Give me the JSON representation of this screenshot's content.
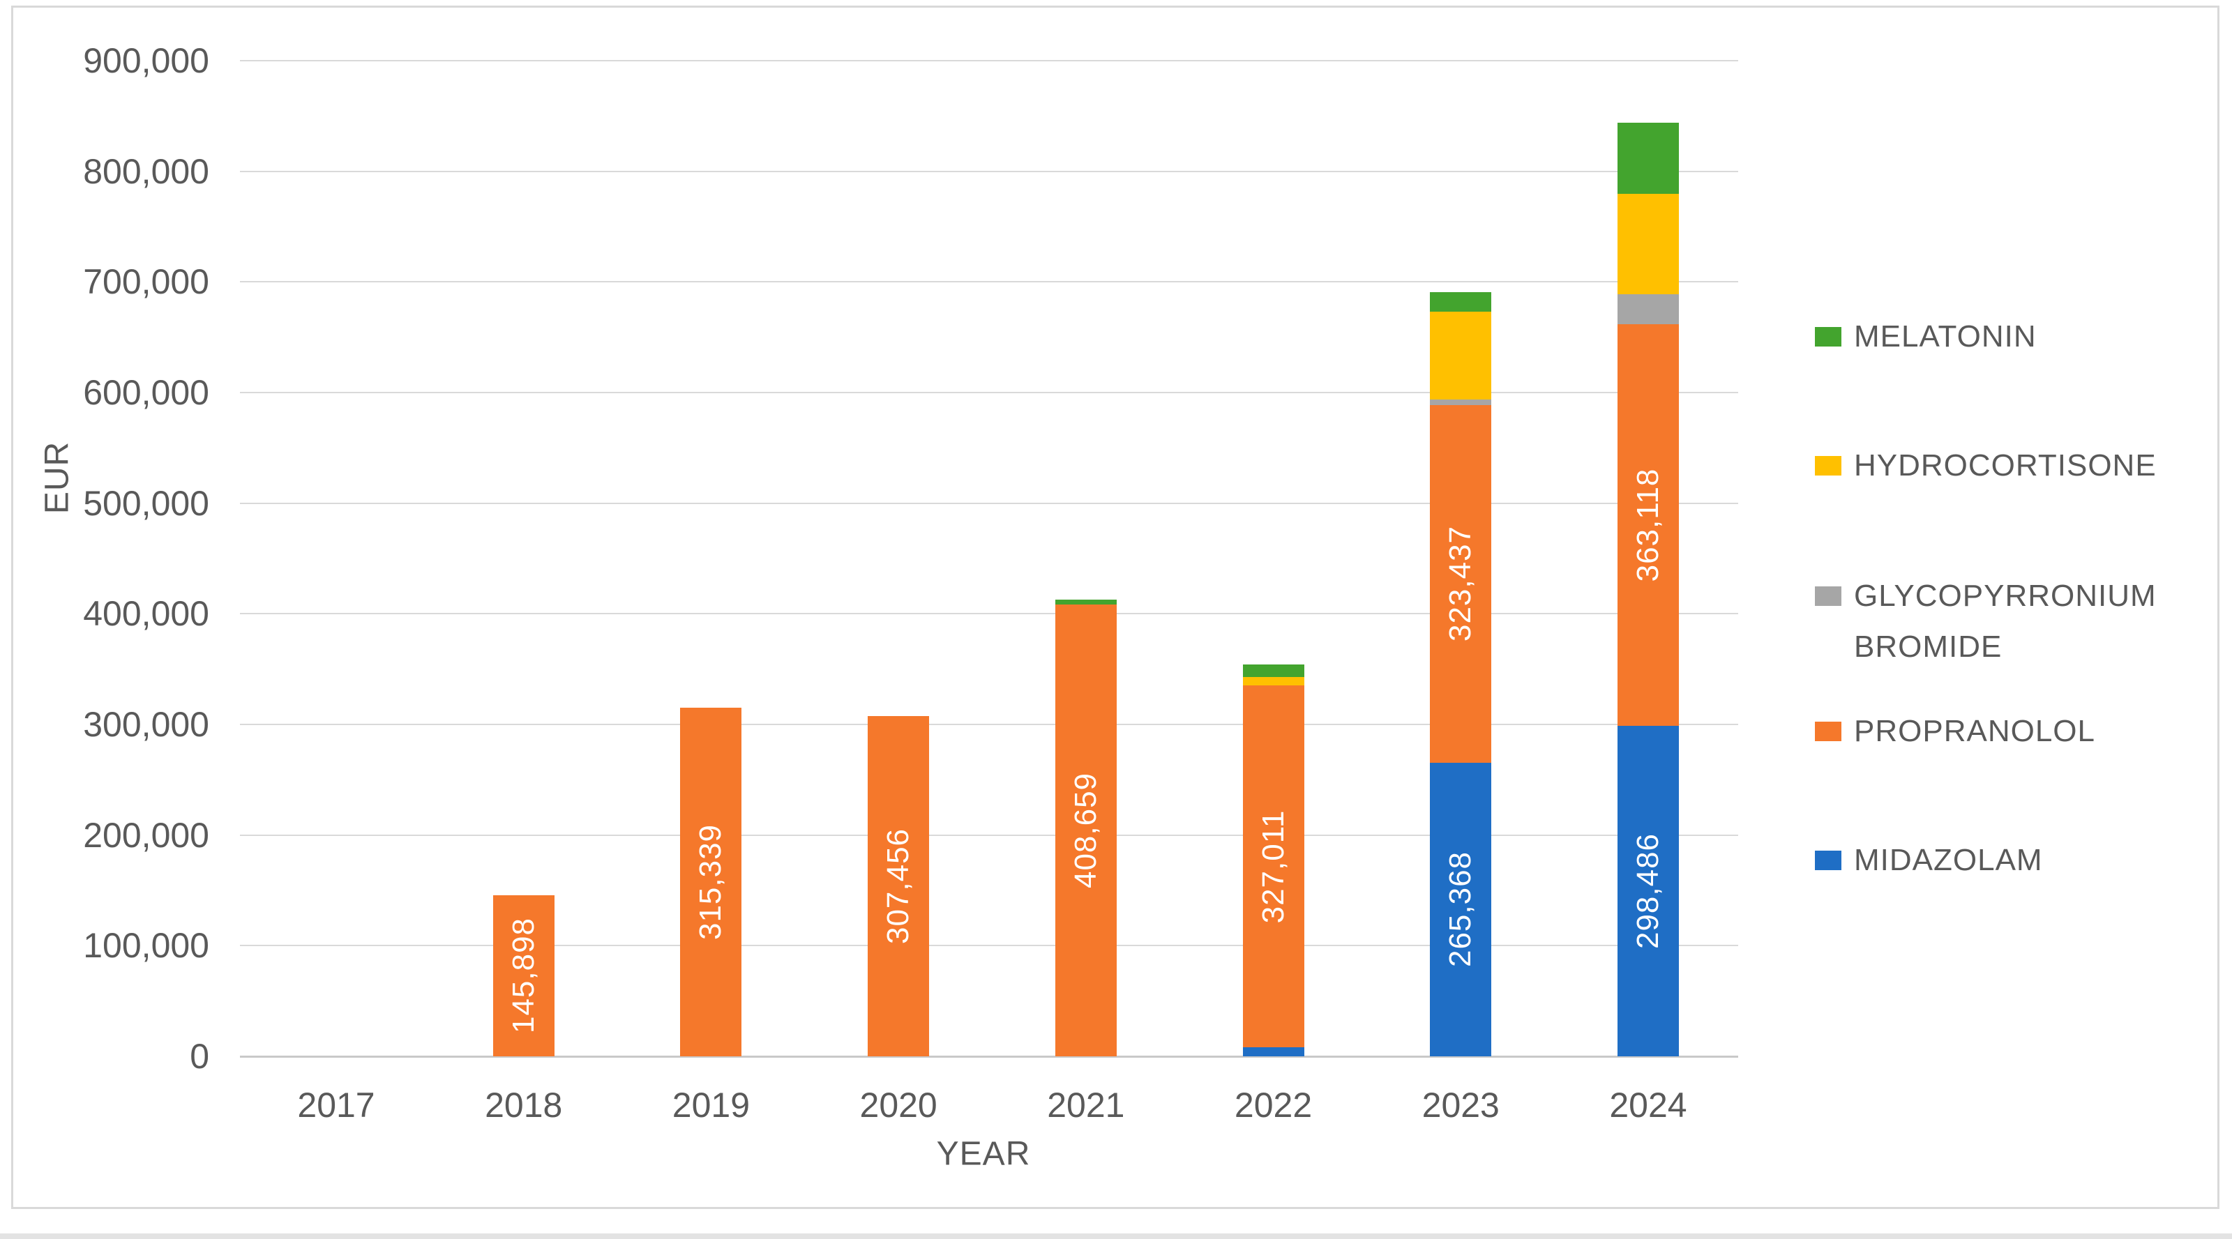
{
  "chart_data": {
    "type": "bar",
    "stacked": true,
    "title": "",
    "xlabel": "YEAR",
    "ylabel": "EUR",
    "ylim": [
      0,
      900000
    ],
    "ytick_step": 100000,
    "grid": true,
    "legend_position": "right",
    "yticks": [
      {
        "value": 0,
        "label": "0"
      },
      {
        "value": 100000,
        "label": "100,000"
      },
      {
        "value": 200000,
        "label": "200,000"
      },
      {
        "value": 300000,
        "label": "300,000"
      },
      {
        "value": 400000,
        "label": "400,000"
      },
      {
        "value": 500000,
        "label": "500,000"
      },
      {
        "value": 600000,
        "label": "600,000"
      },
      {
        "value": 700000,
        "label": "700,000"
      },
      {
        "value": 800000,
        "label": "800,000"
      },
      {
        "value": 900000,
        "label": "900,000"
      }
    ],
    "categories": [
      "2017",
      "2018",
      "2019",
      "2020",
      "2021",
      "2022",
      "2023",
      "2024"
    ],
    "series": [
      {
        "name": "MIDAZOLAM",
        "color": "#1f6ec5",
        "values": [
          0,
          0,
          0,
          0,
          0,
          8000,
          265368,
          298486
        ],
        "data_labels": [
          "",
          "",
          "",
          "",
          "",
          "",
          "265,368",
          "298,486"
        ]
      },
      {
        "name": "PROPRANOLOL",
        "color": "#f5782b",
        "values": [
          0,
          145898,
          315339,
          307456,
          408659,
          327011,
          323437,
          363118
        ],
        "data_labels": [
          "",
          "145,898",
          "315,339",
          "307,456",
          "408,659",
          "327,011",
          "323,437",
          "363,118"
        ]
      },
      {
        "name": "GLYCOPYRRONIUM BROMIDE",
        "color": "#a6a6a6",
        "values": [
          0,
          0,
          0,
          0,
          0,
          0,
          5000,
          27000
        ],
        "data_labels": [
          "",
          "",
          "",
          "",
          "",
          "",
          "",
          ""
        ]
      },
      {
        "name": "HYDROCORTISONE",
        "color": "#ffc000",
        "values": [
          0,
          0,
          0,
          0,
          0,
          8000,
          79000,
          91000
        ],
        "data_labels": [
          "",
          "",
          "",
          "",
          "",
          "",
          "",
          ""
        ]
      },
      {
        "name": "MELATONIN",
        "color": "#43a42e",
        "values": [
          0,
          0,
          0,
          0,
          4000,
          11500,
          18000,
          64000
        ],
        "data_labels": [
          "",
          "",
          "",
          "",
          "",
          "",
          "",
          ""
        ]
      }
    ],
    "legend": [
      "MELATONIN",
      "HYDROCORTISONE",
      "GLYCOPYRRONIUM BROMIDE",
      "PROPRANOLOL",
      "MIDAZOLAM"
    ]
  }
}
